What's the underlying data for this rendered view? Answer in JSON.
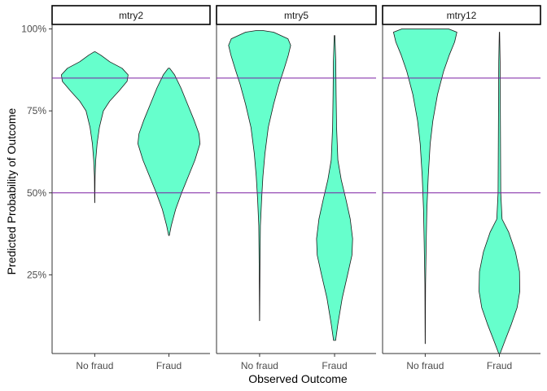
{
  "chart_data": {
    "type": "violin",
    "xlabel": "Observed Outcome",
    "ylabel": "Predicted Probability of Outcome",
    "categories": [
      "No fraud",
      "Fraud"
    ],
    "y_ticks": [
      0.25,
      0.5,
      0.75,
      1.0
    ],
    "y_tick_labels": [
      "25%",
      "50%",
      "75%",
      "100%"
    ],
    "ylim": [
      0.0,
      1.0
    ],
    "reference_lines": [
      0.5,
      0.85
    ],
    "grid": false,
    "colors": {
      "violin_fill": "#66ffcc",
      "violin_stroke": "#1a1a1a",
      "ref_line": "#7a1fa2",
      "strip_border": "#000000",
      "axis": "#333333"
    },
    "facets": [
      {
        "label": "mtry2",
        "violins": [
          {
            "category": "No fraud",
            "profile": [
              [
                0.47,
                0.003
              ],
              [
                0.55,
                0.01
              ],
              [
                0.6,
                0.03
              ],
              [
                0.65,
                0.07
              ],
              [
                0.7,
                0.14
              ],
              [
                0.75,
                0.26
              ],
              [
                0.78,
                0.45
              ],
              [
                0.81,
                0.72
              ],
              [
                0.84,
                0.97
              ],
              [
                0.86,
                1.0
              ],
              [
                0.88,
                0.82
              ],
              [
                0.9,
                0.45
              ],
              [
                0.92,
                0.18
              ],
              [
                0.93,
                0.02
              ]
            ]
          },
          {
            "category": "Fraud",
            "profile": [
              [
                0.37,
                0.01
              ],
              [
                0.4,
                0.07
              ],
              [
                0.45,
                0.2
              ],
              [
                0.5,
                0.38
              ],
              [
                0.55,
                0.58
              ],
              [
                0.6,
                0.78
              ],
              [
                0.65,
                0.93
              ],
              [
                0.68,
                0.9
              ],
              [
                0.72,
                0.76
              ],
              [
                0.77,
                0.56
              ],
              [
                0.82,
                0.36
              ],
              [
                0.86,
                0.17
              ],
              [
                0.88,
                0.02
              ]
            ]
          }
        ]
      },
      {
        "label": "mtry5",
        "violins": [
          {
            "category": "No fraud",
            "profile": [
              [
                0.11,
                0.003
              ],
              [
                0.28,
                0.012
              ],
              [
                0.4,
                0.025
              ],
              [
                0.48,
                0.06
              ],
              [
                0.55,
                0.1
              ],
              [
                0.62,
                0.16
              ],
              [
                0.7,
                0.26
              ],
              [
                0.77,
                0.42
              ],
              [
                0.83,
                0.58
              ],
              [
                0.88,
                0.74
              ],
              [
                0.92,
                0.86
              ],
              [
                0.95,
                0.93
              ],
              [
                0.97,
                0.85
              ],
              [
                0.99,
                0.42
              ],
              [
                0.995,
                0.1
              ]
            ]
          },
          {
            "category": "Fraud",
            "profile": [
              [
                0.05,
                0.03
              ],
              [
                0.1,
                0.1
              ],
              [
                0.18,
                0.23
              ],
              [
                0.25,
                0.39
              ],
              [
                0.31,
                0.52
              ],
              [
                0.36,
                0.54
              ],
              [
                0.42,
                0.47
              ],
              [
                0.48,
                0.34
              ],
              [
                0.54,
                0.2
              ],
              [
                0.6,
                0.1
              ],
              [
                0.7,
                0.06
              ],
              [
                0.8,
                0.045
              ],
              [
                0.9,
                0.035
              ],
              [
                0.98,
                0.01
              ]
            ]
          }
        ]
      },
      {
        "label": "mtry12",
        "violins": [
          {
            "category": "No fraud",
            "profile": [
              [
                0.04,
                0.003
              ],
              [
                0.22,
                0.01
              ],
              [
                0.35,
                0.03
              ],
              [
                0.45,
                0.05
              ],
              [
                0.55,
                0.09
              ],
              [
                0.65,
                0.15
              ],
              [
                0.72,
                0.23
              ],
              [
                0.8,
                0.37
              ],
              [
                0.87,
                0.55
              ],
              [
                0.92,
                0.72
              ],
              [
                0.96,
                0.88
              ],
              [
                0.99,
                0.95
              ],
              [
                1.0,
                0.7
              ]
            ]
          },
          {
            "category": "Fraud",
            "profile": [
              [
                0.01,
                0.02
              ],
              [
                0.05,
                0.17
              ],
              [
                0.1,
                0.36
              ],
              [
                0.15,
                0.53
              ],
              [
                0.2,
                0.61
              ],
              [
                0.26,
                0.6
              ],
              [
                0.32,
                0.48
              ],
              [
                0.38,
                0.28
              ],
              [
                0.42,
                0.08
              ],
              [
                0.5,
                0.04
              ],
              [
                0.6,
                0.035
              ],
              [
                0.7,
                0.03
              ],
              [
                0.8,
                0.025
              ],
              [
                0.9,
                0.02
              ],
              [
                0.99,
                0.005
              ]
            ]
          }
        ]
      }
    ]
  }
}
